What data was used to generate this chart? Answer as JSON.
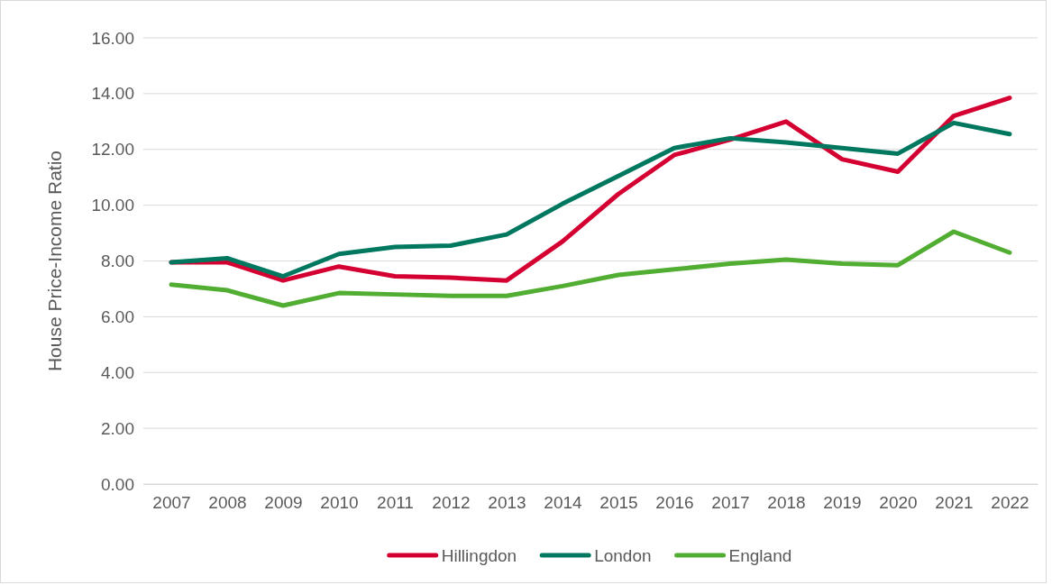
{
  "chart_data": {
    "type": "line",
    "ylabel": "House Price-Income Ratio",
    "categories": [
      "2007",
      "2008",
      "2009",
      "2010",
      "2011",
      "2012",
      "2013",
      "2014",
      "2015",
      "2016",
      "2017",
      "2018",
      "2019",
      "2020",
      "2021",
      "2022"
    ],
    "series": [
      {
        "name": "Hillingdon",
        "color": "#d50032",
        "values": [
          7.95,
          7.95,
          7.3,
          7.8,
          7.45,
          7.4,
          7.3,
          8.7,
          10.4,
          11.8,
          12.35,
          13.0,
          11.65,
          11.2,
          13.2,
          13.85
        ]
      },
      {
        "name": "London",
        "color": "#00785f",
        "values": [
          7.95,
          8.1,
          7.45,
          8.25,
          8.5,
          8.55,
          8.95,
          10.05,
          11.05,
          12.05,
          12.4,
          12.25,
          12.05,
          11.85,
          12.95,
          12.55
        ]
      },
      {
        "name": "England",
        "color": "#52ae32",
        "values": [
          7.15,
          6.95,
          6.4,
          6.85,
          6.8,
          6.75,
          6.75,
          7.1,
          7.5,
          7.7,
          7.9,
          8.05,
          7.9,
          7.85,
          9.05,
          8.3
        ]
      }
    ],
    "ylim": [
      0,
      16
    ],
    "yticks": [
      {
        "value": 0,
        "label": "0.00"
      },
      {
        "value": 2,
        "label": "2.00"
      },
      {
        "value": 4,
        "label": "4.00"
      },
      {
        "value": 6,
        "label": "6.00"
      },
      {
        "value": 8,
        "label": "8.00"
      },
      {
        "value": 10,
        "label": "10.00"
      },
      {
        "value": 12,
        "label": "12.00"
      },
      {
        "value": 14,
        "label": "14.00"
      },
      {
        "value": 16,
        "label": "16.00"
      }
    ],
    "grid": "y",
    "legend": "bottom",
    "marker": "none",
    "line_style": "solid"
  }
}
